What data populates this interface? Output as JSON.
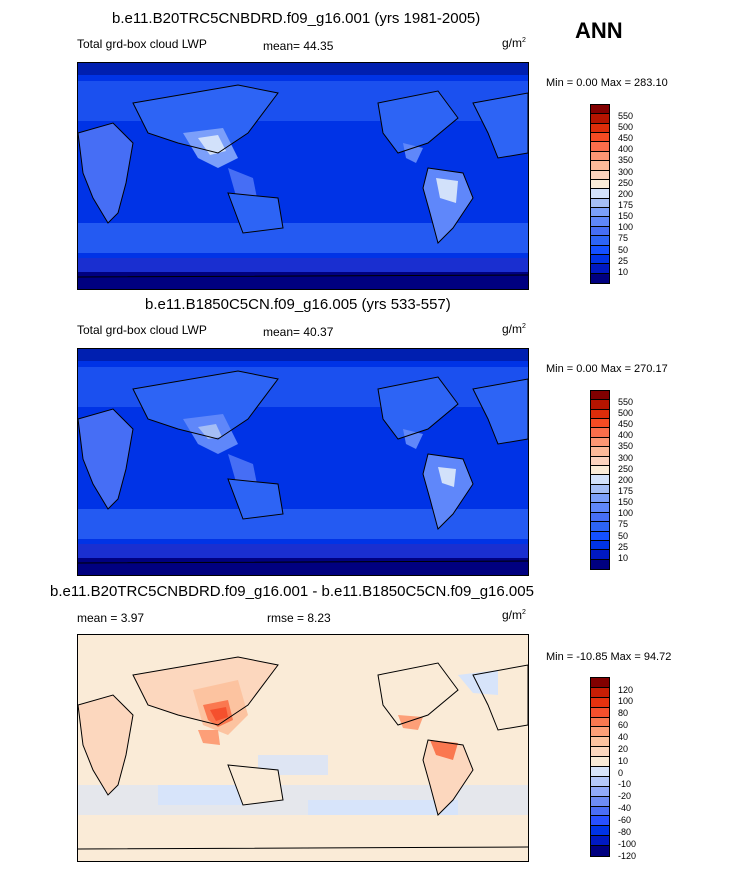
{
  "season": "ANN",
  "units_base": "g/m",
  "units_exp": "2",
  "colors": {
    "lwp_scale": [
      "#000080",
      "#0019c2",
      "#0033e6",
      "#1450ff",
      "#2d64f5",
      "#466ef5",
      "#5f87fa",
      "#7b9ffa",
      "#a5bef5",
      "#d2e1fa",
      "#faebd7",
      "#fbd2be",
      "#fcb999",
      "#fd9673",
      "#fa6e4b",
      "#f54b23",
      "#dc2d0a",
      "#b41400",
      "#820000"
    ],
    "diff_scale": [
      "#000080",
      "#0019c2",
      "#0033e6",
      "#2850ff",
      "#4b6ef5",
      "#6e8cf5",
      "#91aafa",
      "#b4c8fa",
      "#d7e4fa",
      "#faebd7",
      "#fcd7be",
      "#fcc3a0",
      "#fd9f78",
      "#fa7850",
      "#f5502d",
      "#e6320f",
      "#c81e05",
      "#820000"
    ]
  },
  "panels": [
    {
      "title": "b.e11.B20TRC5CNBDRD.f09_g16.001 (yrs 1981-2005)",
      "variable": "Total grd-box cloud LWP",
      "stat1": "mean=  44.35",
      "stat2": "",
      "minmax": "Min =   0.00 Max = 283.10",
      "levels": [
        "550",
        "500",
        "450",
        "400",
        "350",
        "300",
        "250",
        "200",
        "175",
        "150",
        "100",
        "75",
        "50",
        "25",
        "10"
      ]
    },
    {
      "title": "b.e11.B1850C5CN.f09_g16.005 (yrs 533-557)",
      "variable": "Total grd-box cloud LWP",
      "stat1": "mean=  40.37",
      "stat2": "",
      "minmax": "Min =   0.00 Max = 270.17",
      "levels": [
        "550",
        "500",
        "450",
        "400",
        "350",
        "300",
        "250",
        "200",
        "175",
        "150",
        "100",
        "75",
        "50",
        "25",
        "10"
      ]
    },
    {
      "title": "b.e11.B20TRC5CNBDRD.f09_g16.001 - b.e11.B1850C5CN.f09_g16.005",
      "variable": "",
      "stat1": "mean =   3.97",
      "stat2": "rmse =   8.23",
      "minmax": "Min = -10.85 Max =  94.72",
      "levels": [
        "120",
        "100",
        "80",
        "60",
        "40",
        "20",
        "10",
        "0",
        "-10",
        "-20",
        "-40",
        "-60",
        "-80",
        "-100",
        "-120"
      ]
    }
  ]
}
